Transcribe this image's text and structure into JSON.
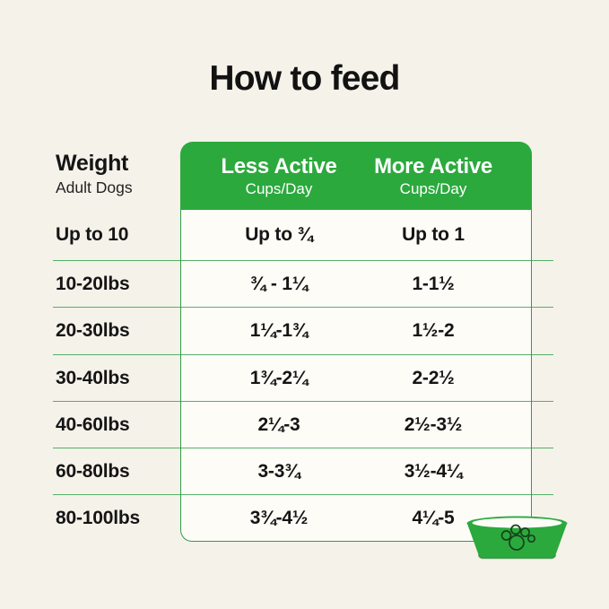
{
  "title": "How to feed",
  "table": {
    "weight_header": {
      "label": "Weight",
      "sublabel": "Adult Dogs"
    },
    "columns": [
      {
        "label": "Less Active",
        "sublabel": "Cups/Day"
      },
      {
        "label": "More Active",
        "sublabel": "Cups/Day"
      }
    ],
    "rows": [
      {
        "weight": "Up to 10",
        "less_active": "Up to ¾",
        "more_active": "Up to 1"
      },
      {
        "weight": "10-20lbs",
        "less_active": "¾ - 1¼",
        "more_active": "1-1½"
      },
      {
        "weight": "20-30lbs",
        "less_active": "1¼-1¾",
        "more_active": "1½-2"
      },
      {
        "weight": "30-40lbs",
        "less_active": "1¾-2¼",
        "more_active": "2-2½"
      },
      {
        "weight": "40-60lbs",
        "less_active": "2¼-3",
        "more_active": "2½-3½"
      },
      {
        "weight": "60-80lbs",
        "less_active": "3-3¾",
        "more_active": "3½-4¼"
      },
      {
        "weight": "80-100lbs",
        "less_active": "3¾-4½",
        "more_active": "4¼-5"
      }
    ]
  },
  "icons": {
    "bowl": "dog-bowl-paw-icon"
  },
  "colors": {
    "green": "#2ba93d",
    "divider_green": "#2d9d48",
    "background": "#f5f2ea",
    "table_background": "#fdfcf7",
    "text": "#151515",
    "header_text": "#ffffff"
  },
  "chart_data": {
    "type": "table",
    "title": "How to feed",
    "columns": [
      "Weight (Adult Dogs)",
      "Less Active Cups/Day",
      "More Active Cups/Day"
    ],
    "rows": [
      [
        "Up to 10",
        "Up to ¾",
        "Up to 1"
      ],
      [
        "10-20lbs",
        "¾ - 1¼",
        "1-1½"
      ],
      [
        "20-30lbs",
        "1¼-1¾",
        "1½-2"
      ],
      [
        "30-40lbs",
        "1¾-2¼",
        "2-2½"
      ],
      [
        "40-60lbs",
        "2¼-3",
        "2½-3½"
      ],
      [
        "60-80lbs",
        "3-3¾",
        "3½-4¼"
      ],
      [
        "80-100lbs",
        "3¾-4½",
        "4¼-5"
      ]
    ]
  }
}
